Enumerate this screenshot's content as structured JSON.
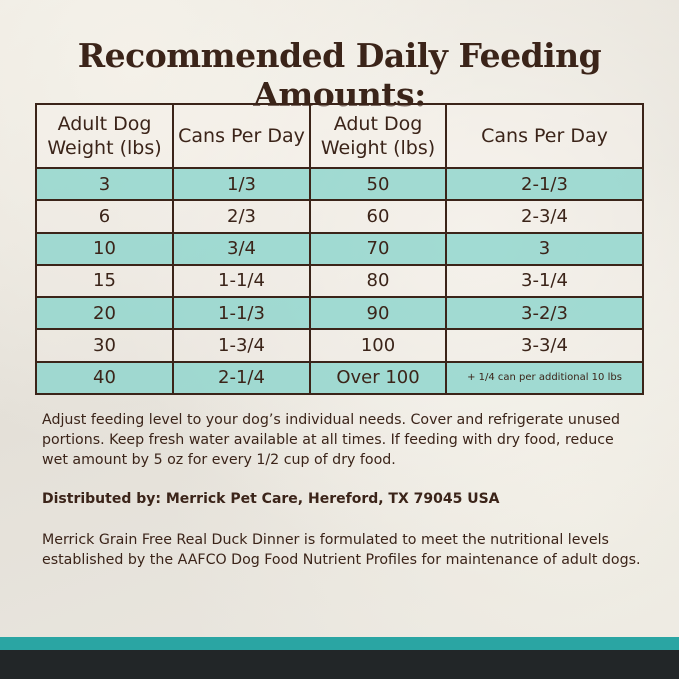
{
  "title": "Recommended Daily Feeding Amounts:",
  "table": {
    "headers": [
      "Adult Dog Weight (lbs)",
      "Cans Per Day",
      "Adut Dog Weight (lbs)",
      "Cans Per Day"
    ],
    "rows": [
      [
        "3",
        "1/3",
        "50",
        "2-1/3"
      ],
      [
        "6",
        "2/3",
        "60",
        "2-3/4"
      ],
      [
        "10",
        "3/4",
        "70",
        "3"
      ],
      [
        "15",
        "1-1/4",
        "80",
        "3-1/4"
      ],
      [
        "20",
        "1-1/3",
        "90",
        "3-2/3"
      ],
      [
        "30",
        "1-3/4",
        "100",
        "3-3/4"
      ],
      [
        "40",
        "2-1/4",
        "Over 100",
        "+ 1/4 can per additional 10 lbs"
      ]
    ]
  },
  "notes": {
    "feeding": "Adjust feeding level to your dog’s individual needs. Cover and refrigerate unused portions. Keep fresh water available at all times. If feeding with dry food, reduce wet amount by 5 oz for every 1/2 cup of dry food.",
    "distributor": "Distributed by: Merrick Pet Care, Hereford, TX 79045 USA",
    "aafco": "Merrick Grain Free Real Duck Dinner is formulated to meet the nutritional levels established by the AAFCO Dog Food Nutrient Profiles for maintenance of adult dogs."
  },
  "colors": {
    "text": "#3b2419",
    "teal_row": "#92d6ce",
    "teal_stripe": "#2aa5a3",
    "dark_stripe": "#222628"
  }
}
